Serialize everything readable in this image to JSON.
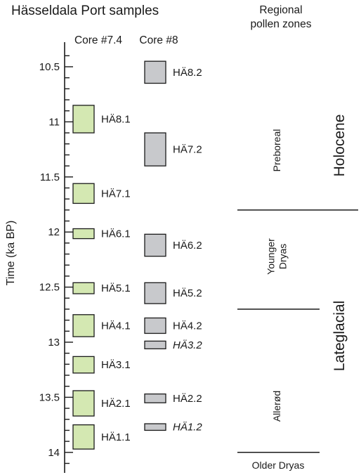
{
  "title": "Hässeldala Port samples",
  "regional_title": [
    "Regional",
    "pollen zones"
  ],
  "core_headers": [
    "Core #7.4",
    "Core #8"
  ],
  "axis": {
    "label": "Time (ka BP)",
    "range": [
      10.35,
      14.2
    ],
    "ticks": [
      "10.5",
      "11",
      "11.5",
      "12",
      "12.5",
      "13",
      "13.5",
      "14"
    ]
  },
  "colors": {
    "core74_fill": "#d4e8b2",
    "core8_fill": "#c8c9cc",
    "stroke": "#1a1a1a"
  },
  "chart_data": {
    "type": "diagram",
    "core74": [
      {
        "label": "HÄ8.1",
        "start": 10.85,
        "end": 11.1,
        "italic": false
      },
      {
        "label": "HÄ7.1",
        "start": 11.56,
        "end": 11.74,
        "italic": false
      },
      {
        "label": "HÄ6.1",
        "start": 11.97,
        "end": 12.06,
        "italic": false
      },
      {
        "label": "HÄ5.1",
        "start": 12.46,
        "end": 12.56,
        "italic": false
      },
      {
        "label": "HÄ4.1",
        "start": 12.75,
        "end": 12.95,
        "italic": false
      },
      {
        "label": "HÄ3.1",
        "start": 13.13,
        "end": 13.28,
        "italic": false
      },
      {
        "label": "HÄ2.1",
        "start": 13.44,
        "end": 13.67,
        "italic": false
      },
      {
        "label": "HÄ1.1",
        "start": 13.75,
        "end": 13.97,
        "italic": false
      }
    ],
    "core8": [
      {
        "label": "HÄ8.2",
        "start": 10.45,
        "end": 10.65,
        "italic": false
      },
      {
        "label": "HÄ7.2",
        "start": 11.1,
        "end": 11.4,
        "italic": false
      },
      {
        "label": "HÄ6.2",
        "start": 12.02,
        "end": 12.22,
        "italic": false
      },
      {
        "label": "HÄ5.2",
        "start": 12.46,
        "end": 12.65,
        "italic": false
      },
      {
        "label": "HÄ4.2",
        "start": 12.78,
        "end": 12.92,
        "italic": false
      },
      {
        "label": "HÄ3.2",
        "start": 12.99,
        "end": 13.06,
        "italic": true
      },
      {
        "label": "HÄ2.2",
        "start": 13.47,
        "end": 13.55,
        "italic": false
      },
      {
        "label": "HÄ1.2",
        "start": 13.74,
        "end": 13.8,
        "italic": true
      }
    ],
    "pollen_zones": [
      {
        "label": [
          "Preboreal"
        ],
        "start": 10.35,
        "end": 11.8
      },
      {
        "label": [
          "Younger",
          "Dryas"
        ],
        "start": 11.8,
        "end": 12.7
      },
      {
        "label": [
          "Allerød"
        ],
        "start": 12.7,
        "end": 14.0
      },
      {
        "label": [
          "Older Dryas"
        ],
        "start": 14.0,
        "end": 14.2
      }
    ],
    "zone_boundaries": [
      11.8,
      12.7,
      14.0
    ],
    "epochs": [
      {
        "label": "Holocene",
        "start": 10.35,
        "end": 11.8
      },
      {
        "label": "Lateglacial",
        "start": 11.8,
        "end": 14.0
      }
    ]
  }
}
